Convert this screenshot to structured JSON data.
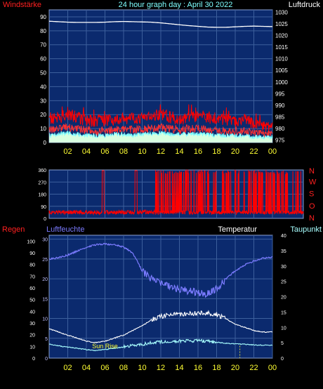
{
  "header": {
    "left_title": "Windstärke",
    "center_title": "24 hour graph day : April 30 2022",
    "right_title": "Luftdruck"
  },
  "direction_labels": [
    "N",
    "W",
    "S",
    "O",
    "N"
  ],
  "lower_labels": {
    "regen": "Regen",
    "luftfeuchte": "Luftfeuchte",
    "temperatur": "Temperatur",
    "taupunkt": "Taupunkt",
    "sunrise": "Sun Rise"
  },
  "colors": {
    "background": "#000000",
    "plot": "#0b2a6e",
    "grid": "#3c5f9c",
    "axis_text": "#ffffff",
    "hour_text": "#ffff33",
    "wind": "#ff0000",
    "gust": "#ff0000",
    "wind_avg": "#bfffff",
    "pressure": "#ffffff",
    "direction": "#ff0000",
    "humidity": "#7b7bff",
    "temperature": "#ffffff",
    "dewpoint": "#a8ffff"
  },
  "chart_data": [
    {
      "type": "line",
      "name_key": "wind_pressure",
      "x_ticks": [
        "02",
        "04",
        "06",
        "08",
        "10",
        "12",
        "14",
        "16",
        "18",
        "20",
        "22",
        "00"
      ],
      "y_left_ticks": [
        "0",
        "10",
        "20",
        "30",
        "40",
        "50",
        "60",
        "70",
        "80",
        "90"
      ],
      "y_left_range": [
        0,
        95
      ],
      "y_right_ticks": [
        "975",
        "980",
        "985",
        "990",
        "995",
        "1000",
        "1005",
        "1010",
        "1015",
        "1020",
        "1025",
        "1030"
      ],
      "y_right_range": [
        974,
        1031
      ],
      "pressure_hourly": [
        1026.1,
        1025.9,
        1025.7,
        1025.6,
        1025.6,
        1025.6,
        1025.7,
        1025.9,
        1026.0,
        1025.9,
        1025.8,
        1025.7,
        1025.4,
        1025.0,
        1024.6,
        1024.2,
        1023.9,
        1023.6,
        1023.5,
        1023.5,
        1023.7,
        1023.9,
        1024.0,
        1023.9,
        1023.8
      ],
      "gust_hourly": [
        17,
        18,
        20,
        18,
        16,
        15,
        16,
        17,
        18,
        17,
        18,
        19,
        20,
        18,
        17,
        18,
        19,
        18,
        17,
        16,
        15,
        16,
        14,
        12,
        11
      ],
      "wind_hourly": [
        9,
        10,
        11,
        10,
        9,
        8,
        9,
        9,
        10,
        9,
        10,
        10,
        11,
        10,
        9,
        10,
        10,
        9,
        9,
        8,
        8,
        8,
        7,
        6,
        6
      ],
      "avg_hourly": [
        5,
        6,
        7,
        6,
        5,
        5,
        5,
        6,
        6,
        5,
        6,
        6,
        7,
        6,
        6,
        6,
        6,
        6,
        5,
        5,
        5,
        5,
        4,
        4,
        4
      ]
    },
    {
      "type": "line",
      "name_key": "wind_direction",
      "y_ticks": [
        "0",
        "90",
        "180",
        "270",
        "360"
      ],
      "y_range": [
        0,
        360
      ],
      "base_direction": 45
    },
    {
      "type": "line",
      "name_key": "rain_humidity_temp",
      "x_ticks": [
        "02",
        "04",
        "06",
        "08",
        "10",
        "12",
        "14",
        "16",
        "18",
        "20",
        "22",
        "00"
      ],
      "y_rain_ticks": [
        "0",
        "10",
        "20",
        "30",
        "40",
        "50",
        "60",
        "70",
        "80",
        "90",
        "100"
      ],
      "y_hum_ticks": [
        "0",
        "5",
        "10",
        "15",
        "20",
        "25",
        "30"
      ],
      "y_hum_range": [
        0,
        31
      ],
      "y_temp_ticks": [
        "0",
        "5",
        "10",
        "15",
        "20",
        "25",
        "30",
        "35",
        "40"
      ],
      "y_temp_range": [
        0,
        40
      ],
      "humidity_hourly": [
        25.0,
        25.3,
        26.0,
        27.0,
        28.0,
        28.6,
        28.8,
        28.6,
        28.0,
        26.5,
        22.0,
        20.0,
        19.0,
        18.0,
        17.3,
        17.0,
        16.5,
        16.2,
        17.5,
        20.0,
        22.0,
        23.5,
        24.5,
        25.2,
        25.5
      ],
      "temperature_hourly": [
        9.5,
        8.5,
        7.5,
        6.5,
        5.5,
        5.0,
        5.5,
        6.5,
        7.5,
        9.0,
        10.5,
        12.5,
        13.5,
        14.0,
        14.2,
        14.5,
        14.5,
        14.8,
        14.2,
        12.8,
        11.0,
        10.0,
        9.0,
        8.5,
        8.5
      ],
      "dewpoint_hourly": [
        4.5,
        4.0,
        3.6,
        3.2,
        2.8,
        2.5,
        2.8,
        3.2,
        3.6,
        4.1,
        4.5,
        5.0,
        5.3,
        5.5,
        5.5,
        5.6,
        5.7,
        5.5,
        5.2,
        4.8,
        4.6,
        4.5,
        4.3,
        4.2,
        4.2
      ],
      "sunrise_hour": 6.0,
      "sunset_hour": 20.5,
      "rain_total": 0
    }
  ]
}
